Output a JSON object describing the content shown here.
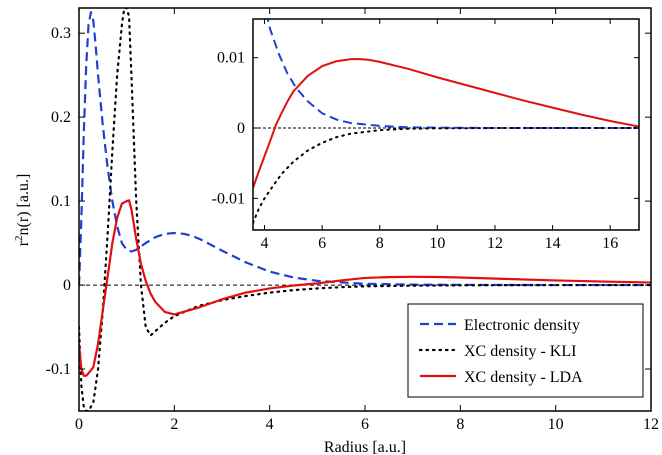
{
  "chart_data": [
    {
      "type": "line",
      "xlabel": "Radius [a.u.]",
      "ylabel": "r^2n(r) [a.u.]",
      "xlim": [
        0,
        12
      ],
      "ylim": [
        -0.15,
        0.33
      ],
      "xticks": [
        "0",
        "2",
        "4",
        "6",
        "8",
        "10",
        "12"
      ],
      "yticks": [
        "-0.1",
        "0",
        "0.1",
        "0.2",
        "0.3"
      ],
      "grid": false,
      "zero_line": true,
      "legend_position": "bottom-right",
      "series": [
        {
          "name": "Electronic density",
          "style": "dashed",
          "color": "#1f3fd6",
          "x": [
            0,
            0.05,
            0.1,
            0.15,
            0.2,
            0.25,
            0.3,
            0.35,
            0.4,
            0.5,
            0.6,
            0.7,
            0.8,
            0.9,
            1.0,
            1.1,
            1.2,
            1.4,
            1.6,
            1.8,
            2.0,
            2.2,
            2.4,
            2.6,
            2.8,
            3.0,
            3.5,
            4.0,
            4.5,
            5.0,
            6.0,
            7.0,
            8.0,
            9.0,
            10.0,
            11.0,
            12.0
          ],
          "y": [
            0,
            0.08,
            0.18,
            0.26,
            0.31,
            0.325,
            0.315,
            0.285,
            0.25,
            0.19,
            0.14,
            0.1,
            0.07,
            0.05,
            0.042,
            0.04,
            0.042,
            0.05,
            0.057,
            0.061,
            0.062,
            0.061,
            0.058,
            0.053,
            0.047,
            0.041,
            0.027,
            0.016,
            0.009,
            0.005,
            0.0015,
            0.0005,
            0.0002,
            0.0001,
            0,
            0,
            0
          ]
        },
        {
          "name": "XC density - KLI",
          "style": "dotted",
          "color": "#000000",
          "x": [
            0,
            0.05,
            0.1,
            0.15,
            0.2,
            0.3,
            0.4,
            0.5,
            0.6,
            0.7,
            0.8,
            0.9,
            0.95,
            1.0,
            1.05,
            1.1,
            1.2,
            1.3,
            1.4,
            1.5,
            1.6,
            1.8,
            2.0,
            2.5,
            3.0,
            3.5,
            4.0,
            4.5,
            5.0,
            5.5,
            6.0,
            7.0,
            8.0,
            9.0,
            10.0,
            11.0,
            12.0
          ],
          "y": [
            -0.05,
            -0.12,
            -0.145,
            -0.15,
            -0.15,
            -0.14,
            -0.1,
            -0.03,
            0.06,
            0.16,
            0.25,
            0.31,
            0.33,
            0.33,
            0.32,
            0.25,
            0.1,
            0.0,
            -0.05,
            -0.06,
            -0.055,
            -0.045,
            -0.037,
            -0.025,
            -0.018,
            -0.013,
            -0.009,
            -0.006,
            -0.004,
            -0.0025,
            -0.0015,
            -0.0007,
            -0.0003,
            -0.0001,
            0,
            0,
            0
          ]
        },
        {
          "name": "XC density - LDA",
          "style": "solid",
          "color": "#e01010",
          "x": [
            0,
            0.05,
            0.1,
            0.15,
            0.2,
            0.3,
            0.4,
            0.5,
            0.6,
            0.7,
            0.8,
            0.9,
            1.0,
            1.05,
            1.1,
            1.2,
            1.3,
            1.4,
            1.5,
            1.6,
            1.8,
            2.0,
            2.5,
            3.0,
            3.5,
            4.0,
            4.5,
            5.0,
            5.5,
            6.0,
            6.5,
            7.0,
            7.5,
            8.0,
            9.0,
            10.0,
            11.0,
            12.0
          ],
          "y": [
            -0.07,
            -0.1,
            -0.108,
            -0.108,
            -0.105,
            -0.098,
            -0.07,
            -0.03,
            0.01,
            0.05,
            0.08,
            0.097,
            0.1,
            0.101,
            0.09,
            0.055,
            0.025,
            0.005,
            -0.01,
            -0.02,
            -0.032,
            -0.035,
            -0.027,
            -0.017,
            -0.009,
            -0.004,
            -0.0005,
            0.002,
            0.0055,
            0.0085,
            0.0095,
            0.0098,
            0.0096,
            0.009,
            0.0072,
            0.0055,
            0.0042,
            0.003
          ]
        }
      ]
    },
    {
      "type": "line",
      "role": "inset",
      "xlim": [
        3.6,
        17
      ],
      "ylim": [
        -0.0145,
        0.0155
      ],
      "xticks": [
        "4",
        "6",
        "8",
        "10",
        "12",
        "14",
        "16"
      ],
      "yticks": [
        "-0.01",
        "0",
        "0.01"
      ],
      "grid": false,
      "zero_line": true,
      "series": [
        {
          "name": "Electronic density",
          "style": "dashed",
          "color": "#1f3fd6",
          "x": [
            3.6,
            3.9,
            4.2,
            4.5,
            4.8,
            5.1,
            5.5,
            6.0,
            6.5,
            7.0,
            8.0,
            9.0,
            10.0,
            12.0,
            14.0,
            16.0,
            17.0
          ],
          "y": [
            0.022,
            0.019,
            0.014,
            0.0105,
            0.0077,
            0.0057,
            0.0038,
            0.0021,
            0.0012,
            0.0007,
            0.0003,
            0.0001,
            5e-05,
            0,
            0,
            0,
            0
          ]
        },
        {
          "name": "XC density - KLI",
          "style": "dotted",
          "color": "#000000",
          "x": [
            3.6,
            3.8,
            4.0,
            4.3,
            4.6,
            5.0,
            5.5,
            6.0,
            6.5,
            7.0,
            8.0,
            9.0,
            10.0,
            12.0,
            14.0,
            16.0,
            17.0
          ],
          "y": [
            -0.0135,
            -0.0115,
            -0.01,
            -0.0082,
            -0.0065,
            -0.0048,
            -0.0032,
            -0.0021,
            -0.0013,
            -0.0008,
            -0.0003,
            -0.0001,
            -5e-05,
            0,
            0,
            0,
            0
          ]
        },
        {
          "name": "XC density - LDA",
          "style": "solid",
          "color": "#e01010",
          "x": [
            3.6,
            3.8,
            4.0,
            4.2,
            4.4,
            4.6,
            4.8,
            5.0,
            5.5,
            6.0,
            6.5,
            7.0,
            7.3,
            7.6,
            8.0,
            9.0,
            10.0,
            11.0,
            12.0,
            13.0,
            14.0,
            15.0,
            16.0,
            17.0
          ],
          "y": [
            -0.0085,
            -0.0062,
            -0.004,
            -0.0018,
            0.0005,
            0.0022,
            0.0038,
            0.0052,
            0.0074,
            0.0088,
            0.0095,
            0.0098,
            0.0098,
            0.0097,
            0.0094,
            0.0084,
            0.0072,
            0.0061,
            0.005,
            0.0039,
            0.0029,
            0.0019,
            0.001,
            0.0002
          ]
        }
      ]
    }
  ]
}
